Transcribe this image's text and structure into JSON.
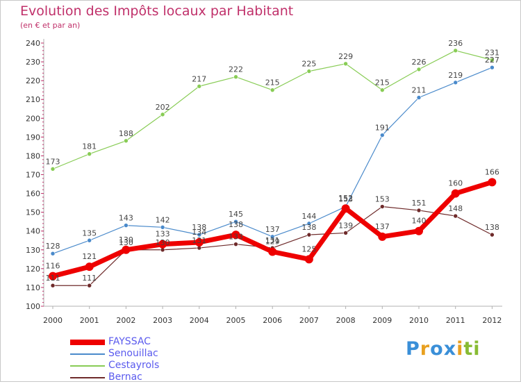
{
  "chart_data": {
    "type": "line",
    "title": "Evolution des Impôts locaux par Habitant",
    "subtitle": "(en € et par an)",
    "xlabel": "",
    "ylabel": "",
    "ylim": [
      100,
      240
    ],
    "yticks": [
      "100",
      "110",
      "120",
      "130",
      "140",
      "150",
      "160",
      "170",
      "180",
      "190",
      "200",
      "210",
      "220",
      "230",
      "240"
    ],
    "categories": [
      "2000",
      "2001",
      "2002",
      "2003",
      "2004",
      "2005",
      "2006",
      "2007",
      "2008",
      "2009",
      "2010",
      "2011",
      "2012"
    ],
    "grid": false,
    "legend_position": "bottom-left",
    "series": [
      {
        "name": "Cestayrols",
        "color": "#88cc55",
        "values": [
          173,
          181,
          188,
          202,
          217,
          222,
          215,
          225,
          229,
          215,
          226,
          236,
          231
        ]
      },
      {
        "name": "Senouillac",
        "color": "#4a8acb",
        "values": [
          128,
          135,
          143,
          142,
          138,
          145,
          137,
          144,
          153,
          191,
          211,
          219,
          227
        ]
      },
      {
        "name": "Bernac",
        "color": "#6e2a2a",
        "values": [
          111,
          111,
          130,
          130,
          131,
          133,
          131,
          138,
          139,
          153,
          151,
          148,
          138
        ]
      },
      {
        "name": "FAYSSAC",
        "color": "#ee0000",
        "values": [
          116,
          121,
          130,
          133,
          134,
          138,
          129,
          125,
          152,
          137,
          140,
          160,
          166
        ]
      }
    ]
  },
  "legend": {
    "items": [
      "FAYSSAC",
      "Senouillac",
      "Cestayrols",
      "Bernac"
    ]
  },
  "brand": {
    "letters": [
      "P",
      "r",
      "o",
      "x",
      "i",
      "t",
      "i"
    ]
  }
}
